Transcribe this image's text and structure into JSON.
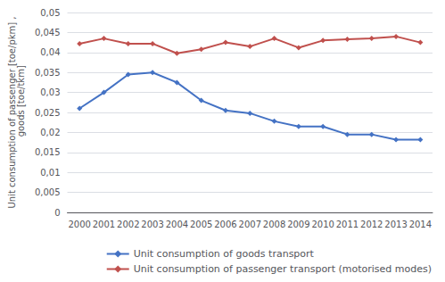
{
  "chart_data": {
    "type": "line",
    "categories": [
      "2000",
      "2001",
      "2002",
      "2003",
      "2004",
      "2005",
      "2006",
      "2007",
      "2008",
      "2009",
      "2010",
      "2011",
      "2012",
      "2013",
      "2014"
    ],
    "series": [
      {
        "name": "Unit consumption of goods transport",
        "color": "#4472C4",
        "marker": "diamond",
        "values": [
          0.026,
          0.03,
          0.0345,
          0.035,
          0.0325,
          0.028,
          0.0255,
          0.0248,
          0.0228,
          0.0215,
          0.0215,
          0.0195,
          0.0195,
          0.0182,
          0.0182
        ]
      },
      {
        "name": "Unit consumption of passenger transport (motorised modes)",
        "color": "#C0504D",
        "marker": "diamond",
        "values": [
          0.0422,
          0.0435,
          0.0422,
          0.0422,
          0.0398,
          0.0408,
          0.0425,
          0.0415,
          0.0435,
          0.0412,
          0.043,
          0.0433,
          0.0435,
          0.044,
          0.0425
        ]
      }
    ],
    "y_label": "Unit consumption of passenger [toe/pkm] ,\n        goods [toe/tkm]",
    "ylim": [
      0,
      0.05
    ],
    "yticks": [
      0,
      {
        "value": 0.005,
        "label": "0,005"
      },
      {
        "value": 0.01,
        "label": "0,01"
      },
      {
        "value": 0.015,
        "label": "0,015"
      },
      {
        "value": 0.02,
        "label": "0,02"
      },
      {
        "value": 0.025,
        "label": "0,025"
      },
      {
        "value": 0.03,
        "label": "0,03"
      },
      {
        "value": 0.035,
        "label": "0,035"
      },
      {
        "value": 0.04,
        "label": "0,04"
      },
      {
        "value": 0.045,
        "label": "0,045"
      },
      {
        "value": 0.05,
        "label": "0,05"
      }
    ],
    "grid": true,
    "legend": "bottom"
  }
}
